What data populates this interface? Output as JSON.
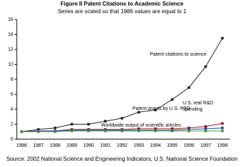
{
  "chart_data": {
    "type": "line",
    "title": "Figure II  Patent Citations to Academic Science",
    "subtitle": "Series are scaled so that 1986 values are equal to 1",
    "source": "Source: 2002 National Science and Engineering Indicators, U.S. National Science Foundation",
    "categories": [
      "1986",
      "1987",
      "1988",
      "1989",
      "1990",
      "1991",
      "1992",
      "1993",
      "1994",
      "1995",
      "1996",
      "1997",
      "1998"
    ],
    "series": [
      {
        "name": "Patent citations to science",
        "color": "#222222",
        "values": [
          1,
          1.3,
          1.5,
          2.0,
          2.0,
          2.4,
          2.8,
          3.6,
          3.9,
          5.3,
          6.9,
          9.7,
          13.5
        ]
      },
      {
        "name": "Patent grants by U.S. PTO",
        "color": "#a01010",
        "values": [
          1,
          1.1,
          1.1,
          1.3,
          1.3,
          1.3,
          1.3,
          1.4,
          1.4,
          1.4,
          1.5,
          1.7,
          2.1
        ]
      },
      {
        "name": "U.S. real R&D spending",
        "color": "#2040c0",
        "values": [
          1,
          1.1,
          1.1,
          1.2,
          1.2,
          1.2,
          1.2,
          1.2,
          1.2,
          1.2,
          1.3,
          1.4,
          1.5
        ]
      },
      {
        "name": "Worldwide output of scientific articles",
        "color": "#30a030",
        "values": [
          1,
          1.0,
          1.0,
          1.1,
          1.1,
          1.1,
          1.1,
          1.1,
          1.1,
          1.1,
          1.1,
          1.1,
          1.1
        ]
      }
    ],
    "ylim": [
      0,
      16
    ],
    "yticks": [
      0,
      2,
      4,
      6,
      8,
      10,
      12,
      14,
      16
    ],
    "grid": false
  }
}
